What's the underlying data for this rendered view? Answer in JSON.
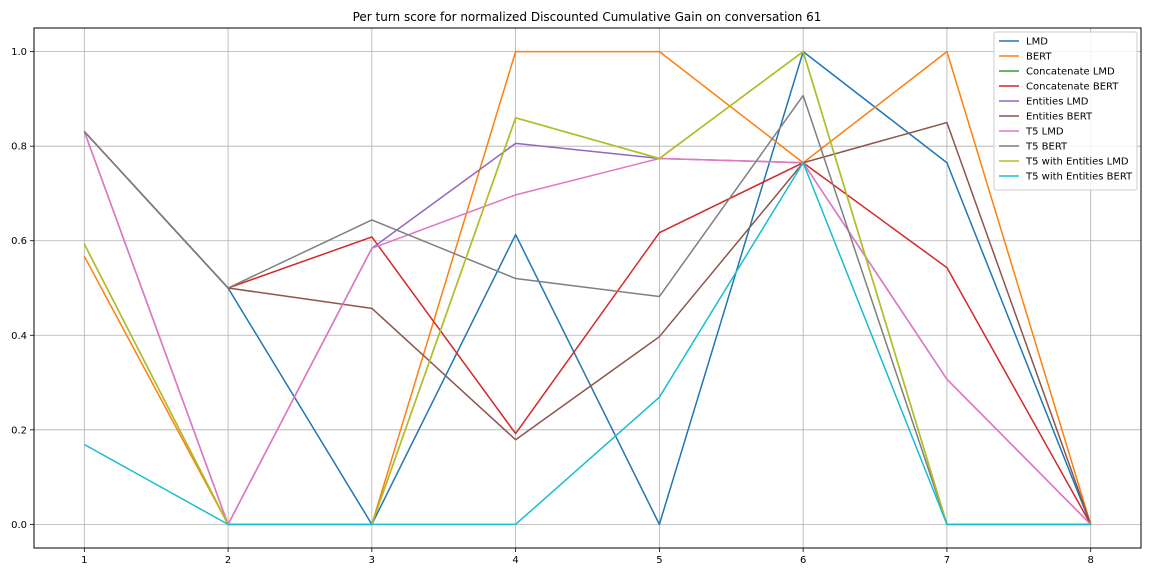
{
  "chart_data": {
    "type": "line",
    "title": "Per turn score for normalized Discounted Cumulative Gain on conversation 61",
    "xlabel": "",
    "ylabel": "",
    "x": [
      1,
      2,
      3,
      4,
      5,
      6,
      7,
      8
    ],
    "xlim": [
      0.65,
      8.35
    ],
    "ylim": [
      -0.05,
      1.05
    ],
    "xticks": [
      "1",
      "2",
      "3",
      "4",
      "5",
      "6",
      "7",
      "8"
    ],
    "yticks": [
      "0.0",
      "0.2",
      "0.4",
      "0.6",
      "0.8",
      "1.0"
    ],
    "grid": true,
    "legend_position": "top-right",
    "series": [
      {
        "name": "LMD",
        "color": "#1f77b4",
        "values": [
          0.831,
          0.5,
          0.0,
          0.613,
          0.0,
          1.0,
          0.765,
          0.0
        ]
      },
      {
        "name": "BERT",
        "color": "#ff7f0e",
        "values": [
          0.567,
          0.0,
          0.0,
          1.0,
          1.0,
          0.765,
          1.0,
          0.0
        ]
      },
      {
        "name": "Concatenate LMD",
        "color": "#2ca02c",
        "values": [
          0.593,
          0.0,
          0.0,
          0.86,
          0.774,
          1.0,
          0.0,
          0.0
        ]
      },
      {
        "name": "Concatenate BERT",
        "color": "#d62728",
        "values": [
          0.831,
          0.5,
          0.608,
          0.192,
          0.617,
          0.765,
          0.543,
          0.0
        ]
      },
      {
        "name": "Entities LMD",
        "color": "#9467bd",
        "values": [
          0.831,
          0.0,
          0.584,
          0.806,
          0.774,
          0.765,
          0.307,
          0.0
        ]
      },
      {
        "name": "Entities BERT",
        "color": "#8c564b",
        "values": [
          0.831,
          0.5,
          0.457,
          0.179,
          0.397,
          0.765,
          0.85,
          0.0
        ]
      },
      {
        "name": "T5 LMD",
        "color": "#e377c2",
        "values": [
          0.831,
          0.0,
          0.584,
          0.697,
          0.774,
          0.765,
          0.307,
          0.0
        ]
      },
      {
        "name": "T5 BERT",
        "color": "#7f7f7f",
        "values": [
          0.831,
          0.5,
          0.644,
          0.52,
          0.482,
          0.907,
          0.0,
          0.0
        ]
      },
      {
        "name": "T5 with Entities LMD",
        "color": "#bcbd22",
        "values": [
          0.593,
          0.0,
          0.0,
          0.86,
          0.774,
          1.0,
          0.0,
          0.0
        ]
      },
      {
        "name": "T5 with Entities BERT",
        "color": "#17becf",
        "values": [
          0.169,
          0.0,
          0.0,
          0.0,
          0.269,
          0.765,
          0.0,
          0.0
        ]
      }
    ]
  }
}
